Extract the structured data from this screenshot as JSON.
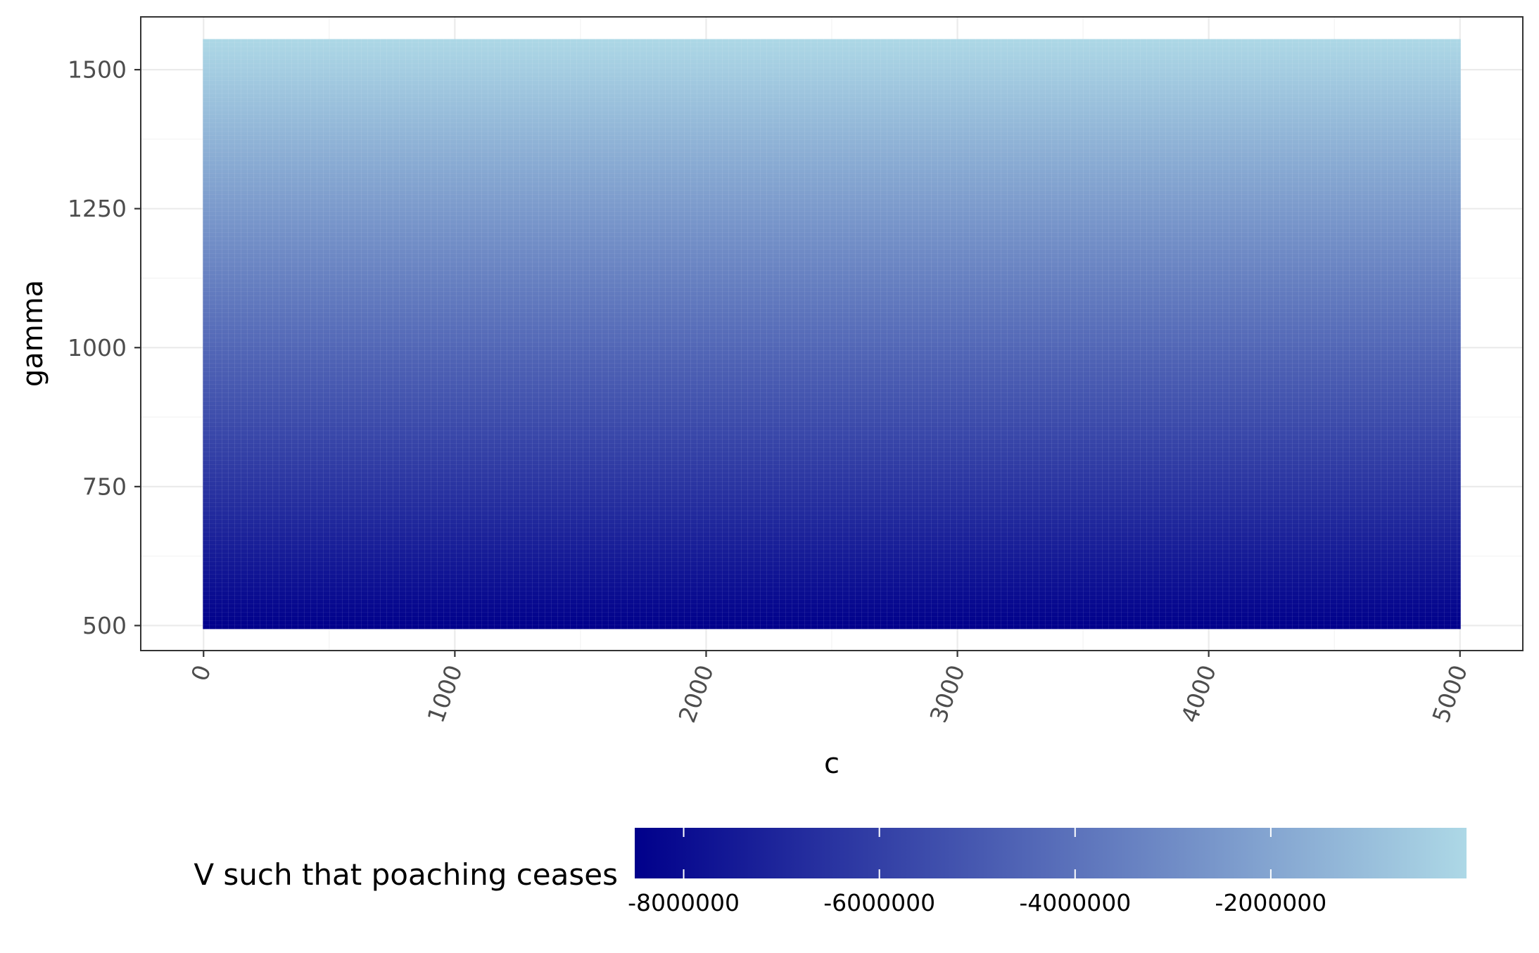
{
  "chart_data": {
    "type": "heatmap",
    "title": "",
    "xlabel": "c",
    "ylabel": "gamma",
    "x_range": [
      0,
      5000
    ],
    "y_range": [
      500,
      1550
    ],
    "xlim": [
      -250,
      5250
    ],
    "ylim": [
      455,
      1595
    ],
    "x_ticks": [
      0,
      1000,
      2000,
      3000,
      4000,
      5000
    ],
    "x_tick_labels": [
      "0",
      "1000",
      "2000",
      "3000",
      "4000",
      "5000"
    ],
    "x_tick_label_rotation": "vertical-tilted",
    "y_ticks": [
      500,
      750,
      1000,
      1250,
      1500
    ],
    "y_tick_labels": [
      "500",
      "750",
      "1000",
      "1250",
      "1500"
    ],
    "grid": true,
    "fill_variable": "V such that poaching ceases",
    "fill_direction": "varies with gamma; lowest values at gamma = 500, highest at gamma ≈ 1550",
    "fill_range": [
      -8500000,
      0
    ],
    "colorscale": {
      "low_color": "#00008b",
      "high_color": "#add8e6"
    },
    "legend": {
      "title": "V such that poaching ceases",
      "position": "bottom",
      "breaks": [
        -8000000,
        -6000000,
        -4000000,
        -2000000
      ],
      "labels": [
        "-8000000",
        "-6000000",
        "-4000000",
        "-2000000"
      ]
    }
  }
}
